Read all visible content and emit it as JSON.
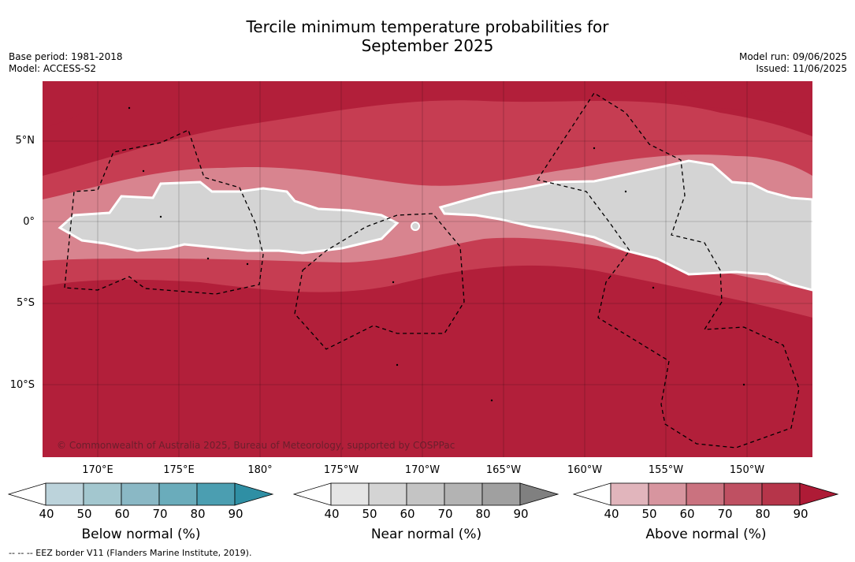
{
  "title": {
    "line1": "Tercile minimum temperature probabilities for",
    "line2": "September 2025"
  },
  "meta": {
    "base_period": "Base period: 1981-2018",
    "model": "Model: ACCESS-S2",
    "model_run": "Model run: 09/06/2025",
    "issued": "Issued: 11/06/2025"
  },
  "map": {
    "lat_labels": [
      "5°N",
      "0°",
      "5°S",
      "10°S"
    ],
    "lon_labels": [
      "170°E",
      "175°E",
      "180°",
      "175°W",
      "170°W",
      "165°W",
      "160°W",
      "155°W",
      "150°W"
    ],
    "credit": "© Commonwealth of Australia 2025, Bureau of Meteorology, supported by COSPPac",
    "colors": {
      "above_deep": "#b21f3a",
      "above_mid": "#c63d52",
      "above_light": "#d8848f",
      "near": "#d4d4d4"
    }
  },
  "colorbars": [
    {
      "label": "Below normal (%)",
      "ticks": [
        "40",
        "50",
        "60",
        "70",
        "80",
        "90"
      ],
      "colors": [
        "#ffffff",
        "#bcd3db",
        "#a3c7cf",
        "#8ab8c5",
        "#6aacbb",
        "#4b9eb1",
        "#2f8fa4"
      ]
    },
    {
      "label": "Near normal (%)",
      "ticks": [
        "40",
        "50",
        "60",
        "70",
        "80",
        "90"
      ],
      "colors": [
        "#ffffff",
        "#e5e5e5",
        "#d4d4d4",
        "#c4c4c4",
        "#b3b3b3",
        "#a0a0a0",
        "#808080"
      ]
    },
    {
      "label": "Above normal (%)",
      "ticks": [
        "40",
        "50",
        "60",
        "70",
        "80",
        "90"
      ],
      "colors": [
        "#ffffff",
        "#e1b5bc",
        "#d7959f",
        "#ca727f",
        "#bf5062",
        "#b6354a",
        "#ae1b36"
      ]
    }
  ],
  "footer": "--  --  -- EEZ border V11 (Flanders Marine Institute, 2019)."
}
